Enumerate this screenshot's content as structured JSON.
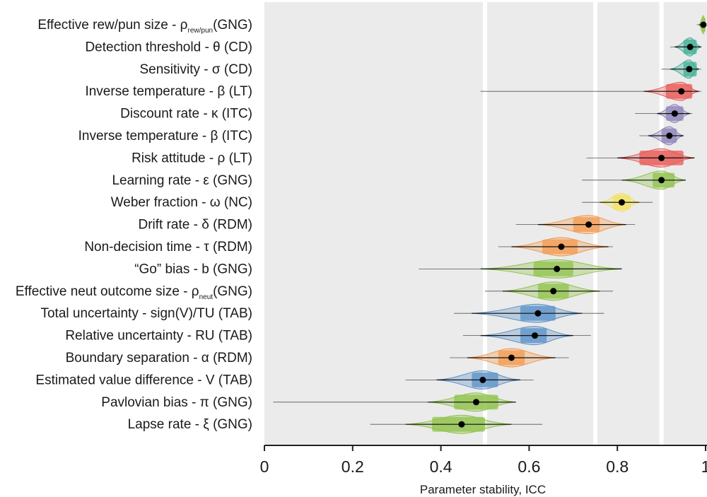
{
  "chart_data": {
    "type": "violin",
    "xlabel": "Parameter stability, ICC",
    "xlim": [
      0,
      1
    ],
    "x_ticks": [
      0,
      0.2,
      0.4,
      0.6,
      0.8,
      1
    ],
    "x_tick_labels": [
      "0",
      "0.2",
      "0.4",
      "0.6",
      "0.8",
      "1"
    ],
    "bands": [
      {
        "from": 0.5,
        "to": 0.75,
        "label": ""
      },
      {
        "from": 0.75,
        "to": 0.9,
        "label": ""
      },
      {
        "from": 0.9,
        "to": 1.0,
        "label": ""
      }
    ],
    "colors": {
      "GNG": "#8fc24a",
      "CD": "#3fae95",
      "LT": "#e85a55",
      "ITC": "#8e83b8",
      "NC": "#f2e25e",
      "RDM": "#f39a4e",
      "TAB": "#5b92c8"
    },
    "parameters": [
      {
        "label": "Effective rew/pun size - ρ",
        "sub": "rew/pun",
        "suffix": "(GNG)",
        "task": "GNG",
        "median": 0.995,
        "iqr": [
          0.99,
          1.0
        ],
        "ci": [
          0.985,
          1.0
        ],
        "range": [
          0.98,
          1.0
        ]
      },
      {
        "label": "Detection threshold - θ (CD)",
        "sub": "",
        "suffix": "",
        "task": "CD",
        "median": 0.965,
        "iqr": [
          0.95,
          0.98
        ],
        "ci": [
          0.93,
          0.99
        ],
        "range": [
          0.92,
          0.99
        ]
      },
      {
        "label": "Sensitivity - σ (CD)",
        "sub": "",
        "suffix": "",
        "task": "CD",
        "median": 0.963,
        "iqr": [
          0.95,
          0.98
        ],
        "ci": [
          0.92,
          0.985
        ],
        "range": [
          0.9,
          0.99
        ]
      },
      {
        "label": "Inverse temperature - β (LT)",
        "sub": "",
        "suffix": "",
        "task": "LT",
        "median": 0.945,
        "iqr": [
          0.91,
          0.97
        ],
        "ci": [
          0.86,
          0.985
        ],
        "range": [
          0.49,
          0.99
        ]
      },
      {
        "label": "Discount rate - κ (ITC)",
        "sub": "",
        "suffix": "",
        "task": "ITC",
        "median": 0.93,
        "iqr": [
          0.91,
          0.95
        ],
        "ci": [
          0.89,
          0.965
        ],
        "range": [
          0.84,
          0.97
        ]
      },
      {
        "label": "Inverse temperature - β (ITC)",
        "sub": "",
        "suffix": "",
        "task": "ITC",
        "median": 0.918,
        "iqr": [
          0.9,
          0.935
        ],
        "ci": [
          0.87,
          0.95
        ],
        "range": [
          0.85,
          0.95
        ]
      },
      {
        "label": "Risk attitude - ρ (LT)",
        "sub": "",
        "suffix": "",
        "task": "LT",
        "median": 0.9,
        "iqr": [
          0.85,
          0.95
        ],
        "ci": [
          0.8,
          0.975
        ],
        "range": [
          0.73,
          0.975
        ]
      },
      {
        "label": "Learning rate - ε (GNG)",
        "sub": "",
        "suffix": "",
        "task": "GNG",
        "median": 0.9,
        "iqr": [
          0.88,
          0.93
        ],
        "ci": [
          0.81,
          0.955
        ],
        "range": [
          0.72,
          0.955
        ]
      },
      {
        "label": "Weber fraction -  ω (NC)",
        "sub": "",
        "suffix": "",
        "task": "NC",
        "median": 0.81,
        "iqr": [
          0.79,
          0.83
        ],
        "ci": [
          0.76,
          0.85
        ],
        "range": [
          0.72,
          0.88
        ]
      },
      {
        "label": "Drift rate - δ (RDM)",
        "sub": "",
        "suffix": "",
        "task": "RDM",
        "median": 0.735,
        "iqr": [
          0.7,
          0.76
        ],
        "ci": [
          0.62,
          0.82
        ],
        "range": [
          0.57,
          0.84
        ]
      },
      {
        "label": "Non-decision time - τ (RDM)",
        "sub": "",
        "suffix": "",
        "task": "RDM",
        "median": 0.673,
        "iqr": [
          0.63,
          0.71
        ],
        "ci": [
          0.56,
          0.78
        ],
        "range": [
          0.53,
          0.79
        ]
      },
      {
        "label": "“Go” bias - b (GNG)",
        "sub": "",
        "suffix": "",
        "task": "GNG",
        "median": 0.663,
        "iqr": [
          0.61,
          0.7
        ],
        "ci": [
          0.49,
          0.81
        ],
        "range": [
          0.35,
          0.81
        ]
      },
      {
        "label": "Effective neut outcome size - ρ",
        "sub": "neut",
        "suffix": "(GNG)",
        "task": "GNG",
        "median": 0.655,
        "iqr": [
          0.62,
          0.69
        ],
        "ci": [
          0.54,
          0.76
        ],
        "range": [
          0.5,
          0.79
        ]
      },
      {
        "label": "Total uncertainty - sign(V)/TU (TAB)",
        "sub": "",
        "suffix": "",
        "task": "TAB",
        "median": 0.62,
        "iqr": [
          0.58,
          0.66
        ],
        "ci": [
          0.47,
          0.72
        ],
        "range": [
          0.43,
          0.77
        ]
      },
      {
        "label": "Relative uncertainty - RU (TAB)",
        "sub": "",
        "suffix": "",
        "task": "TAB",
        "median": 0.613,
        "iqr": [
          0.58,
          0.64
        ],
        "ci": [
          0.49,
          0.7
        ],
        "range": [
          0.45,
          0.74
        ]
      },
      {
        "label": "Boundary separation - α (RDM)",
        "sub": "",
        "suffix": "",
        "task": "RDM",
        "median": 0.56,
        "iqr": [
          0.53,
          0.59
        ],
        "ci": [
          0.46,
          0.66
        ],
        "range": [
          0.42,
          0.69
        ]
      },
      {
        "label": "Estimated value difference - V (TAB)",
        "sub": "",
        "suffix": "",
        "task": "TAB",
        "median": 0.495,
        "iqr": [
          0.47,
          0.53
        ],
        "ci": [
          0.39,
          0.58
        ],
        "range": [
          0.32,
          0.61
        ]
      },
      {
        "label": "Pavlovian bias - π (GNG)",
        "sub": "",
        "suffix": "",
        "task": "GNG",
        "median": 0.48,
        "iqr": [
          0.43,
          0.53
        ],
        "ci": [
          0.37,
          0.57
        ],
        "range": [
          0.02,
          0.57
        ]
      },
      {
        "label": "Lapse rate - ξ (GNG)",
        "sub": "",
        "suffix": "",
        "task": "GNG",
        "median": 0.447,
        "iqr": [
          0.38,
          0.5
        ],
        "ci": [
          0.32,
          0.56
        ],
        "range": [
          0.24,
          0.63
        ]
      }
    ]
  }
}
